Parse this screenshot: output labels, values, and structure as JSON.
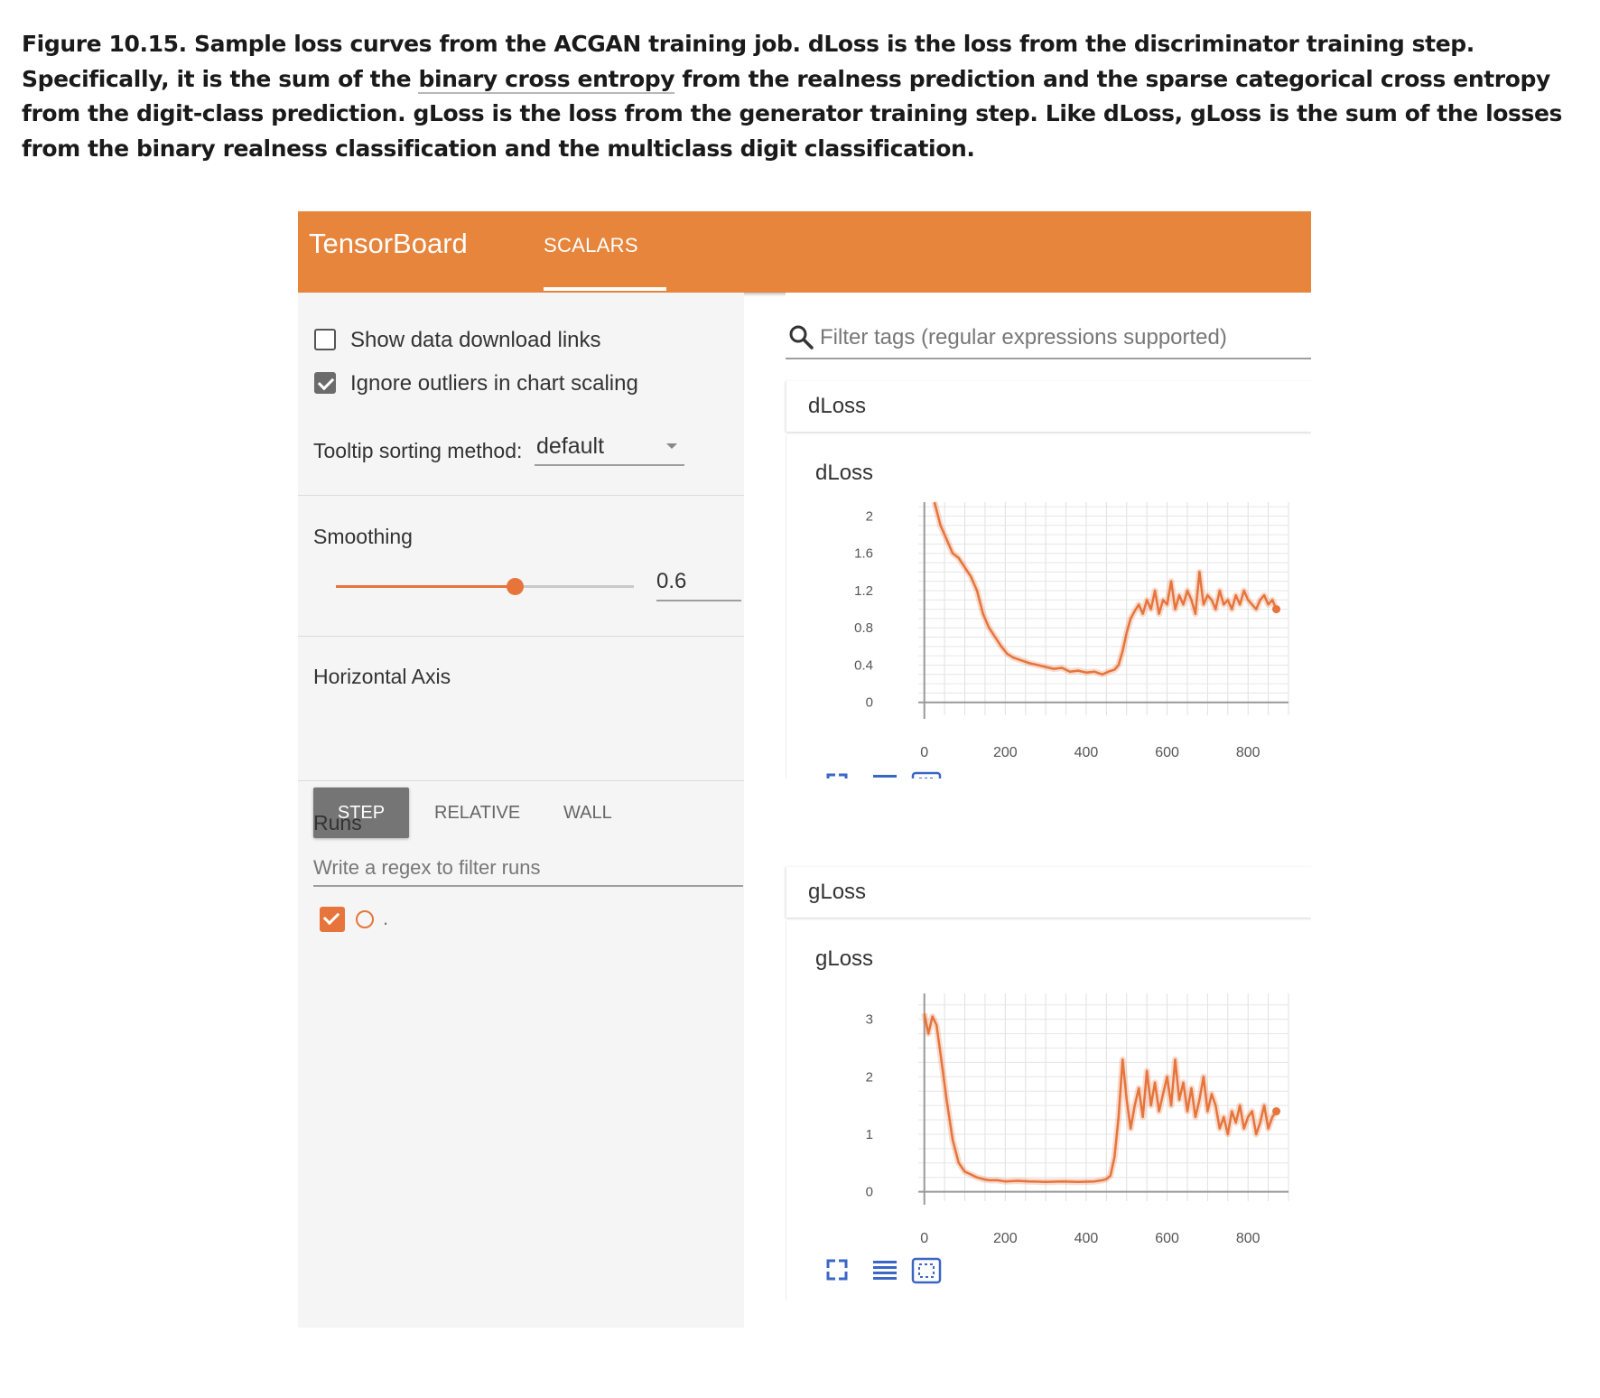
{
  "caption": {
    "part1": "Figure 10.15. Sample loss curves from the ACGAN training job. dLoss is the loss from the discriminator training step. Specifically, it is the sum of the ",
    "link": "binary cross entropy",
    "part2": " from the realness prediction and the sparse categorical cross entropy from the digit-class prediction. gLoss is the loss from the generator training step. Like dLoss, gLoss is the sum of the losses from the binary realness classification and the multiclass digit classification."
  },
  "header": {
    "title": "TensorBoard",
    "tab": "SCALARS",
    "color": "#e6853b"
  },
  "sidebar": {
    "show_download": "Show data download links",
    "ignore_outliers": "Ignore outliers in chart scaling",
    "tooltip_label": "Tooltip sorting method:",
    "tooltip_value": "default",
    "smoothing_label": "Smoothing",
    "smoothing_value": "0.6",
    "smoothing_level": 0.6,
    "haxis_label": "Horizontal Axis",
    "haxis_options": [
      "STEP",
      "RELATIVE",
      "WALL"
    ],
    "runs_label": "Runs",
    "runs_placeholder": "Write a regex to filter runs",
    "run_name": "."
  },
  "main": {
    "filter_placeholder": "Filter tags (regular expressions supported)",
    "accent": "#e6743b"
  },
  "chart_data": [
    {
      "type": "line",
      "title": "dLoss",
      "group": "dLoss",
      "xlim": [
        -15,
        900
      ],
      "ylim": [
        -0.1,
        2.15
      ],
      "xticks": [
        0,
        200,
        400,
        600,
        800
      ],
      "yticks": [
        "0",
        "0.4",
        "0.8",
        "1.2",
        "1.6",
        "2"
      ],
      "x": [
        25,
        40,
        55,
        70,
        85,
        100,
        115,
        130,
        145,
        160,
        175,
        190,
        205,
        220,
        240,
        260,
        280,
        300,
        320,
        340,
        360,
        380,
        400,
        420,
        440,
        455,
        470,
        480,
        490,
        500,
        510,
        520,
        530,
        540,
        550,
        560,
        570,
        580,
        590,
        600,
        610,
        620,
        630,
        640,
        650,
        660,
        670,
        680,
        690,
        700,
        710,
        720,
        730,
        740,
        750,
        760,
        770,
        780,
        790,
        800,
        810,
        820,
        830,
        840,
        850,
        860,
        870
      ],
      "y": [
        2.2,
        1.9,
        1.75,
        1.6,
        1.55,
        1.45,
        1.35,
        1.2,
        0.95,
        0.8,
        0.7,
        0.6,
        0.52,
        0.48,
        0.45,
        0.42,
        0.4,
        0.38,
        0.36,
        0.37,
        0.33,
        0.34,
        0.32,
        0.33,
        0.3,
        0.33,
        0.35,
        0.4,
        0.55,
        0.75,
        0.9,
        0.98,
        1.05,
        0.95,
        1.1,
        1.0,
        1.2,
        0.95,
        1.1,
        1.05,
        1.3,
        1.0,
        1.15,
        1.05,
        1.2,
        1.1,
        0.95,
        1.4,
        1.05,
        1.15,
        1.1,
        1.0,
        1.2,
        1.05,
        1.1,
        1.0,
        1.15,
        1.05,
        1.2,
        1.1,
        1.05,
        1.0,
        1.1,
        1.15,
        1.05,
        1.1,
        1.0
      ]
    },
    {
      "type": "line",
      "title": "gLoss",
      "group": "gLoss",
      "xlim": [
        -15,
        900
      ],
      "ylim": [
        -0.1,
        3.45
      ],
      "xticks": [
        0,
        200,
        400,
        600,
        800
      ],
      "yticks": [
        "0",
        "1",
        "2",
        "3"
      ],
      "x": [
        0,
        10,
        20,
        30,
        40,
        55,
        70,
        85,
        100,
        115,
        130,
        145,
        160,
        180,
        200,
        230,
        260,
        300,
        340,
        380,
        420,
        440,
        450,
        460,
        470,
        480,
        490,
        500,
        510,
        520,
        530,
        540,
        550,
        560,
        570,
        580,
        590,
        600,
        610,
        620,
        630,
        640,
        650,
        660,
        670,
        680,
        690,
        700,
        710,
        720,
        730,
        740,
        750,
        760,
        770,
        780,
        790,
        800,
        810,
        820,
        830,
        840,
        850,
        860,
        870
      ],
      "y": [
        3.1,
        2.75,
        3.05,
        2.9,
        2.4,
        1.6,
        0.9,
        0.5,
        0.35,
        0.3,
        0.25,
        0.22,
        0.2,
        0.2,
        0.18,
        0.19,
        0.18,
        0.17,
        0.18,
        0.17,
        0.18,
        0.2,
        0.22,
        0.28,
        0.6,
        1.3,
        2.3,
        1.6,
        1.1,
        1.5,
        1.8,
        1.3,
        2.1,
        1.5,
        1.9,
        1.4,
        1.7,
        2.0,
        1.5,
        2.3,
        1.6,
        1.9,
        1.4,
        1.8,
        1.3,
        1.6,
        2.0,
        1.4,
        1.7,
        1.5,
        1.1,
        1.3,
        1.0,
        1.4,
        1.2,
        1.5,
        1.1,
        1.3,
        1.4,
        1.0,
        1.2,
        1.5,
        1.1,
        1.3,
        1.4
      ]
    }
  ]
}
